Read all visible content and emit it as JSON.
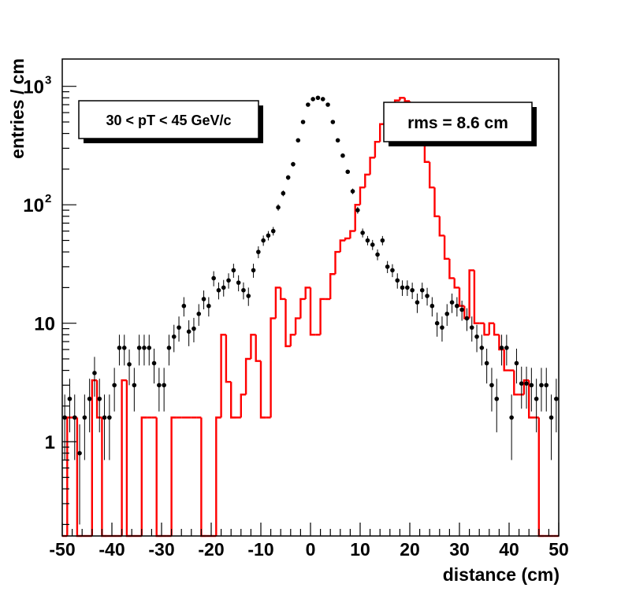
{
  "chart_data": {
    "type": "histogram",
    "xlabel": "distance (cm)",
    "ylabel": "entries / cm",
    "xlim": [
      -50,
      50
    ],
    "ylim": [
      0.16,
      1700
    ],
    "yscale": "log",
    "x_ticks": [
      "-50",
      "-40",
      "-30",
      "-20",
      "-10",
      "0",
      "10",
      "20",
      "30",
      "40",
      "50"
    ],
    "x_tick_values": [
      -50,
      -40,
      -30,
      -20,
      -10,
      0,
      10,
      20,
      30,
      40,
      50
    ],
    "y_ticks": [
      {
        "value": 1,
        "label": "1"
      },
      {
        "value": 10,
        "label": "10"
      },
      {
        "value": 100,
        "label": "10",
        "exponent": "2"
      },
      {
        "value": 1000,
        "label": "10",
        "exponent": "3"
      }
    ],
    "annotations": {
      "pt_box": "30 < pT < 45 GeV/c",
      "rms_box": "rms = 8.6 cm"
    },
    "bin_width": 1,
    "x_start": -50,
    "histogram": {
      "name": "red histogram",
      "color": "#ff0000",
      "values": [
        0.1,
        1.6,
        1.6,
        0.1,
        0.1,
        0.1,
        3.3,
        1.6,
        0.1,
        0.1,
        0.1,
        0.1,
        3.3,
        0.1,
        0.1,
        0.1,
        1.6,
        1.6,
        1.6,
        0.1,
        0.1,
        0.1,
        1.6,
        1.6,
        1.6,
        1.6,
        1.6,
        1.6,
        0.1,
        0.1,
        0.1,
        1.6,
        8,
        3.2,
        1.6,
        1.6,
        2.5,
        5,
        8,
        4.8,
        1.6,
        1.6,
        11,
        20,
        16,
        6.4,
        8,
        11,
        16,
        20,
        8,
        8,
        16,
        16,
        26,
        40,
        50,
        52,
        60,
        100,
        140,
        180,
        250,
        340,
        480,
        610,
        710,
        760,
        800,
        750,
        640,
        510,
        340,
        230,
        140,
        80,
        55,
        35,
        24,
        20,
        14,
        11,
        28,
        10,
        10,
        8,
        10,
        8,
        6,
        4,
        4,
        2.5,
        2.5,
        3.3,
        1.6,
        1.6,
        0.1,
        0.1,
        0.1,
        0.1
      ]
    },
    "points": {
      "name": "data points",
      "color": "#000000",
      "x": [
        -49.5,
        -48.5,
        -47.5,
        -46.5,
        -45.5,
        -44.5,
        -43.5,
        -42.5,
        -41.5,
        -40.5,
        -39.5,
        -38.5,
        -37.5,
        -36.5,
        -35.5,
        -34.5,
        -33.5,
        -32.5,
        -31.5,
        -30.5,
        -29.5,
        -28.5,
        -27.5,
        -26.5,
        -25.5,
        -24.5,
        -23.5,
        -22.5,
        -21.5,
        -20.5,
        -19.5,
        -18.5,
        -17.5,
        -16.5,
        -15.5,
        -14.5,
        -13.5,
        -12.5,
        -11.5,
        -10.5,
        -9.5,
        -8.5,
        -7.5,
        -6.5,
        -5.5,
        -4.5,
        -3.5,
        -2.5,
        -1.5,
        -0.5,
        0.5,
        1.5,
        2.5,
        3.5,
        4.5,
        5.5,
        6.5,
        7.5,
        8.5,
        9.5,
        10.5,
        11.5,
        12.5,
        13.5,
        14.5,
        15.5,
        16.5,
        17.5,
        18.5,
        19.5,
        20.5,
        21.5,
        22.5,
        23.5,
        24.5,
        25.5,
        26.5,
        27.5,
        28.5,
        29.5,
        30.5,
        31.5,
        32.5,
        33.5,
        34.5,
        35.5,
        36.5,
        37.5,
        38.5,
        39.5,
        40.5,
        41.5,
        42.5,
        43.5,
        44.5,
        45.5,
        46.5,
        47.5,
        48.5,
        49.5
      ],
      "y": [
        1.6,
        2.3,
        1.6,
        0.8,
        1.6,
        2.3,
        3.8,
        2.3,
        1.6,
        1.6,
        3,
        6.2,
        6.2,
        4.5,
        3,
        6.2,
        6.2,
        6.2,
        4.6,
        3,
        3,
        6.2,
        7.7,
        9.2,
        14,
        8.5,
        9,
        12,
        16,
        14,
        24,
        19,
        20,
        23,
        28,
        22,
        19,
        17,
        28,
        40,
        50,
        55,
        60,
        95,
        125,
        170,
        220,
        350,
        500,
        700,
        780,
        800,
        780,
        700,
        500,
        350,
        260,
        190,
        130,
        90,
        58,
        50,
        46,
        38,
        50,
        30,
        28,
        23,
        20,
        20,
        19,
        15,
        19,
        17,
        14,
        10,
        9.2,
        12,
        15,
        14,
        13,
        11,
        9.2,
        7.7,
        6.2,
        4.6,
        3,
        2.3,
        6.2,
        6.2,
        1.6,
        4.6,
        3.1,
        3.1,
        3,
        2.3,
        3,
        3,
        1.6,
        2.3
      ],
      "err": [
        0.9,
        1.1,
        0.9,
        0.6,
        0.9,
        1.1,
        1.4,
        1.1,
        0.9,
        0.9,
        1.2,
        1.8,
        1.8,
        1.5,
        1.2,
        1.8,
        1.8,
        1.8,
        1.5,
        1.2,
        1.2,
        1.8,
        2,
        2.2,
        2.6,
        2.1,
        2.1,
        2.5,
        2.9,
        2.6,
        3.5,
        3.1,
        3.2,
        3.4,
        3.8,
        3.4,
        3.1,
        3,
        3.8,
        4.6,
        5,
        5,
        5,
        6,
        7,
        8,
        10,
        12,
        14,
        16,
        17,
        17,
        17,
        16,
        14,
        12,
        10,
        8,
        7,
        6,
        5,
        4.5,
        4.5,
        4,
        4.5,
        3.5,
        3.5,
        3.4,
        3,
        3,
        3,
        2.8,
        3,
        2.9,
        2.6,
        2.3,
        2.2,
        2.5,
        2.8,
        2.6,
        2.5,
        2.4,
        2.2,
        2,
        1.8,
        1.5,
        1.2,
        1.1,
        1.8,
        1.8,
        0.9,
        1.5,
        1.2,
        1.2,
        1.2,
        1.1,
        1.2,
        1.2,
        0.9,
        1.1
      ]
    }
  }
}
